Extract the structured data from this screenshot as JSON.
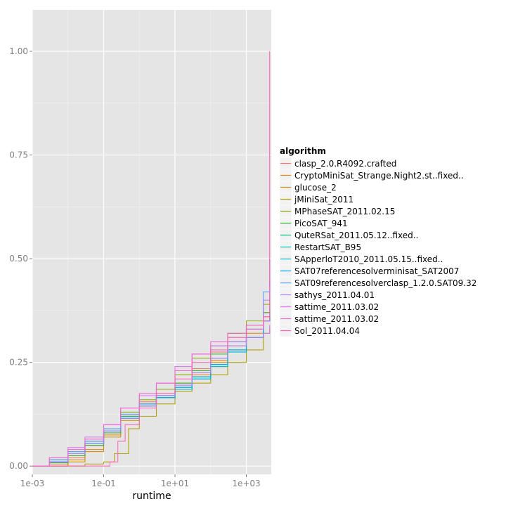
{
  "chart_data": {
    "type": "line",
    "step": true,
    "xlabel": "runtime",
    "ylabel": "",
    "x_scale": "log10",
    "xlim": [
      0.001,
      5000
    ],
    "ylim": [
      -0.02,
      1.1
    ],
    "x_ticks": [
      0.001,
      0.1,
      10,
      1000
    ],
    "x_tick_labels": [
      "1e-03",
      "1e-01",
      "1e+01",
      "1e+03"
    ],
    "y_ticks": [
      0,
      0.25,
      0.5,
      0.75,
      1
    ],
    "y_tick_labels": [
      "0.00",
      "0.25",
      "0.50",
      "0.75",
      "1.00"
    ],
    "grid": true,
    "panel_background": "#e5e5e5",
    "legend": {
      "title": "algorithm",
      "position": "right"
    },
    "series": [
      {
        "name": "clasp_2.0.R4092.crafted",
        "color": "#F8766D",
        "points": [
          [
            0.001,
            0
          ],
          [
            0.003,
            0.005
          ],
          [
            0.01,
            0.02
          ],
          [
            0.03,
            0.05
          ],
          [
            0.1,
            0.085
          ],
          [
            0.3,
            0.12
          ],
          [
            1,
            0.155
          ],
          [
            3,
            0.175
          ],
          [
            10,
            0.2
          ],
          [
            30,
            0.235
          ],
          [
            100,
            0.275
          ],
          [
            300,
            0.31
          ],
          [
            1000,
            0.34
          ],
          [
            3000,
            0.37
          ],
          [
            4500,
            0.39
          ]
        ]
      },
      {
        "name": "CryptoMiniSat_Strange.Night2.st..fixed..",
        "color": "#E6861C",
        "points": [
          [
            0.001,
            0
          ],
          [
            0.01,
            0.015
          ],
          [
            0.03,
            0.04
          ],
          [
            0.1,
            0.075
          ],
          [
            0.3,
            0.115
          ],
          [
            1,
            0.15
          ],
          [
            3,
            0.17
          ],
          [
            10,
            0.19
          ],
          [
            30,
            0.22
          ],
          [
            100,
            0.255
          ],
          [
            300,
            0.29
          ],
          [
            1000,
            0.32
          ],
          [
            3000,
            0.36
          ],
          [
            4500,
            0.37
          ]
        ]
      },
      {
        "name": "glucose_2",
        "color": "#CF9400",
        "points": [
          [
            0.001,
            0
          ],
          [
            0.01,
            0.01
          ],
          [
            0.03,
            0.035
          ],
          [
            0.1,
            0.07
          ],
          [
            0.3,
            0.11
          ],
          [
            1,
            0.145
          ],
          [
            3,
            0.165
          ],
          [
            10,
            0.19
          ],
          [
            30,
            0.215
          ],
          [
            100,
            0.25
          ],
          [
            300,
            0.28
          ],
          [
            1000,
            0.31
          ],
          [
            3000,
            0.35
          ],
          [
            4500,
            0.36
          ]
        ]
      },
      {
        "name": "jMiniSat_2011",
        "color": "#B0A000",
        "points": [
          [
            0.001,
            0
          ],
          [
            0.03,
            0.005
          ],
          [
            0.1,
            0.01
          ],
          [
            0.2,
            0.03
          ],
          [
            0.5,
            0.09
          ],
          [
            1,
            0.12
          ],
          [
            3,
            0.15
          ],
          [
            10,
            0.18
          ],
          [
            30,
            0.2
          ],
          [
            100,
            0.22
          ],
          [
            300,
            0.25
          ],
          [
            1000,
            0.28
          ],
          [
            3000,
            0.32
          ],
          [
            4500,
            0.33
          ]
        ]
      },
      {
        "name": "MPhaseSAT_2011.02.15",
        "color": "#88AB00",
        "points": [
          [
            0.001,
            0
          ],
          [
            0.003,
            0.01
          ],
          [
            0.01,
            0.03
          ],
          [
            0.03,
            0.055
          ],
          [
            0.1,
            0.09
          ],
          [
            0.3,
            0.13
          ],
          [
            1,
            0.16
          ],
          [
            3,
            0.185
          ],
          [
            10,
            0.22
          ],
          [
            30,
            0.26
          ],
          [
            100,
            0.29
          ],
          [
            300,
            0.32
          ],
          [
            1000,
            0.35
          ],
          [
            3000,
            0.39
          ],
          [
            4500,
            0.41
          ]
        ]
      },
      {
        "name": "PicoSAT_941",
        "color": "#35B234",
        "points": [
          [
            0.001,
            0
          ],
          [
            0.003,
            0.008
          ],
          [
            0.01,
            0.025
          ],
          [
            0.03,
            0.05
          ],
          [
            0.1,
            0.08
          ],
          [
            0.3,
            0.12
          ],
          [
            1,
            0.15
          ],
          [
            3,
            0.17
          ],
          [
            10,
            0.2
          ],
          [
            30,
            0.23
          ],
          [
            100,
            0.27
          ],
          [
            300,
            0.3
          ],
          [
            1000,
            0.33
          ],
          [
            3000,
            0.37
          ],
          [
            4500,
            0.38
          ]
        ]
      },
      {
        "name": "QuteRSat_2011.05.12..fixed..",
        "color": "#00BB83",
        "points": [
          [
            0.001,
            0
          ],
          [
            0.003,
            0.015
          ],
          [
            0.01,
            0.035
          ],
          [
            0.03,
            0.06
          ],
          [
            0.1,
            0.09
          ],
          [
            0.3,
            0.12
          ],
          [
            1,
            0.15
          ],
          [
            3,
            0.17
          ],
          [
            10,
            0.19
          ],
          [
            30,
            0.215
          ],
          [
            100,
            0.245
          ],
          [
            300,
            0.28
          ],
          [
            1000,
            0.31
          ],
          [
            3000,
            0.35
          ],
          [
            4500,
            0.36
          ]
        ]
      },
      {
        "name": "RestartSAT_B95",
        "color": "#00BCAD",
        "points": [
          [
            0.001,
            0
          ],
          [
            0.003,
            0.01
          ],
          [
            0.01,
            0.03
          ],
          [
            0.03,
            0.055
          ],
          [
            0.1,
            0.085
          ],
          [
            0.3,
            0.115
          ],
          [
            1,
            0.145
          ],
          [
            3,
            0.165
          ],
          [
            10,
            0.185
          ],
          [
            30,
            0.21
          ],
          [
            100,
            0.24
          ],
          [
            300,
            0.275
          ],
          [
            1000,
            0.31
          ],
          [
            3000,
            0.35
          ],
          [
            4500,
            0.36
          ]
        ]
      },
      {
        "name": "SApperloT2010_2011.05.15..fixed..",
        "color": "#00B7D2",
        "points": [
          [
            0.001,
            0
          ],
          [
            0.003,
            0.01
          ],
          [
            0.01,
            0.03
          ],
          [
            0.03,
            0.055
          ],
          [
            0.1,
            0.085
          ],
          [
            0.3,
            0.115
          ],
          [
            1,
            0.145
          ],
          [
            3,
            0.165
          ],
          [
            10,
            0.185
          ],
          [
            30,
            0.21
          ],
          [
            100,
            0.24
          ],
          [
            300,
            0.275
          ],
          [
            1000,
            0.31
          ],
          [
            3000,
            0.35
          ],
          [
            4500,
            0.37
          ]
        ]
      },
      {
        "name": "SAT07referencesolverminisat_SAT2007",
        "color": "#00A9F0",
        "points": [
          [
            0.001,
            0
          ],
          [
            0.003,
            0.01
          ],
          [
            0.01,
            0.03
          ],
          [
            0.03,
            0.055
          ],
          [
            0.1,
            0.085
          ],
          [
            0.3,
            0.115
          ],
          [
            1,
            0.145
          ],
          [
            3,
            0.165
          ],
          [
            10,
            0.19
          ],
          [
            30,
            0.215
          ],
          [
            100,
            0.245
          ],
          [
            300,
            0.28
          ],
          [
            1000,
            0.31
          ],
          [
            3000,
            0.35
          ],
          [
            4500,
            0.36
          ]
        ]
      },
      {
        "name": "SAT09referencesolverclasp_1.2.0.SAT09.32",
        "color": "#5E9EFF",
        "points": [
          [
            0.001,
            0
          ],
          [
            0.003,
            0.015
          ],
          [
            0.01,
            0.035
          ],
          [
            0.03,
            0.06
          ],
          [
            0.1,
            0.09
          ],
          [
            0.3,
            0.125
          ],
          [
            1,
            0.15
          ],
          [
            3,
            0.17
          ],
          [
            10,
            0.195
          ],
          [
            30,
            0.225
          ],
          [
            100,
            0.26
          ],
          [
            300,
            0.3
          ],
          [
            1000,
            0.34
          ],
          [
            3000,
            0.42
          ],
          [
            4500,
            0.45
          ]
        ]
      },
      {
        "name": "sathys_2011.04.01",
        "color": "#B084F6",
        "points": [
          [
            0.001,
            0
          ],
          [
            0.003,
            0.01
          ],
          [
            0.01,
            0.03
          ],
          [
            0.03,
            0.055
          ],
          [
            0.1,
            0.085
          ],
          [
            0.3,
            0.115
          ],
          [
            1,
            0.145
          ],
          [
            3,
            0.17
          ],
          [
            10,
            0.195
          ],
          [
            30,
            0.225
          ],
          [
            100,
            0.26
          ],
          [
            300,
            0.29
          ],
          [
            1000,
            0.33
          ],
          [
            3000,
            0.4
          ],
          [
            4500,
            0.5
          ]
        ]
      },
      {
        "name": "sattime_2011.03.02",
        "color": "#DE71F9",
        "points": [
          [
            0.001,
            0
          ],
          [
            0.003,
            0.02
          ],
          [
            0.01,
            0.045
          ],
          [
            0.03,
            0.07
          ],
          [
            0.1,
            0.1
          ],
          [
            0.3,
            0.14
          ],
          [
            1,
            0.17
          ],
          [
            3,
            0.2
          ],
          [
            10,
            0.24
          ],
          [
            30,
            0.27
          ],
          [
            100,
            0.29
          ],
          [
            300,
            0.3
          ],
          [
            1000,
            0.31
          ],
          [
            3000,
            0.32
          ],
          [
            4500,
            0.34
          ]
        ]
      },
      {
        "name": "sattime_2011.03.02",
        "color": "#F365D1",
        "points": [
          [
            0.001,
            0
          ],
          [
            0.003,
            0.02
          ],
          [
            0.01,
            0.04
          ],
          [
            0.03,
            0.065
          ],
          [
            0.1,
            0.1
          ],
          [
            0.3,
            0.14
          ],
          [
            1,
            0.175
          ],
          [
            3,
            0.2
          ],
          [
            10,
            0.23
          ],
          [
            30,
            0.27
          ],
          [
            100,
            0.3
          ],
          [
            300,
            0.32
          ],
          [
            1000,
            0.33
          ],
          [
            3000,
            0.35
          ],
          [
            4500,
            0.36
          ]
        ]
      },
      {
        "name": "Sol_2011.04.04",
        "color": "#FF62BC",
        "points": [
          [
            0.001,
            0
          ],
          [
            0.1,
            0
          ],
          [
            0.15,
            0.01
          ],
          [
            0.25,
            0.06
          ],
          [
            0.4,
            0.1
          ],
          [
            1,
            0.14
          ],
          [
            3,
            0.175
          ],
          [
            10,
            0.21
          ],
          [
            30,
            0.25
          ],
          [
            100,
            0.28
          ],
          [
            300,
            0.31
          ],
          [
            1000,
            0.34
          ],
          [
            3000,
            0.36
          ],
          [
            4500,
            1.0
          ]
        ]
      }
    ]
  }
}
